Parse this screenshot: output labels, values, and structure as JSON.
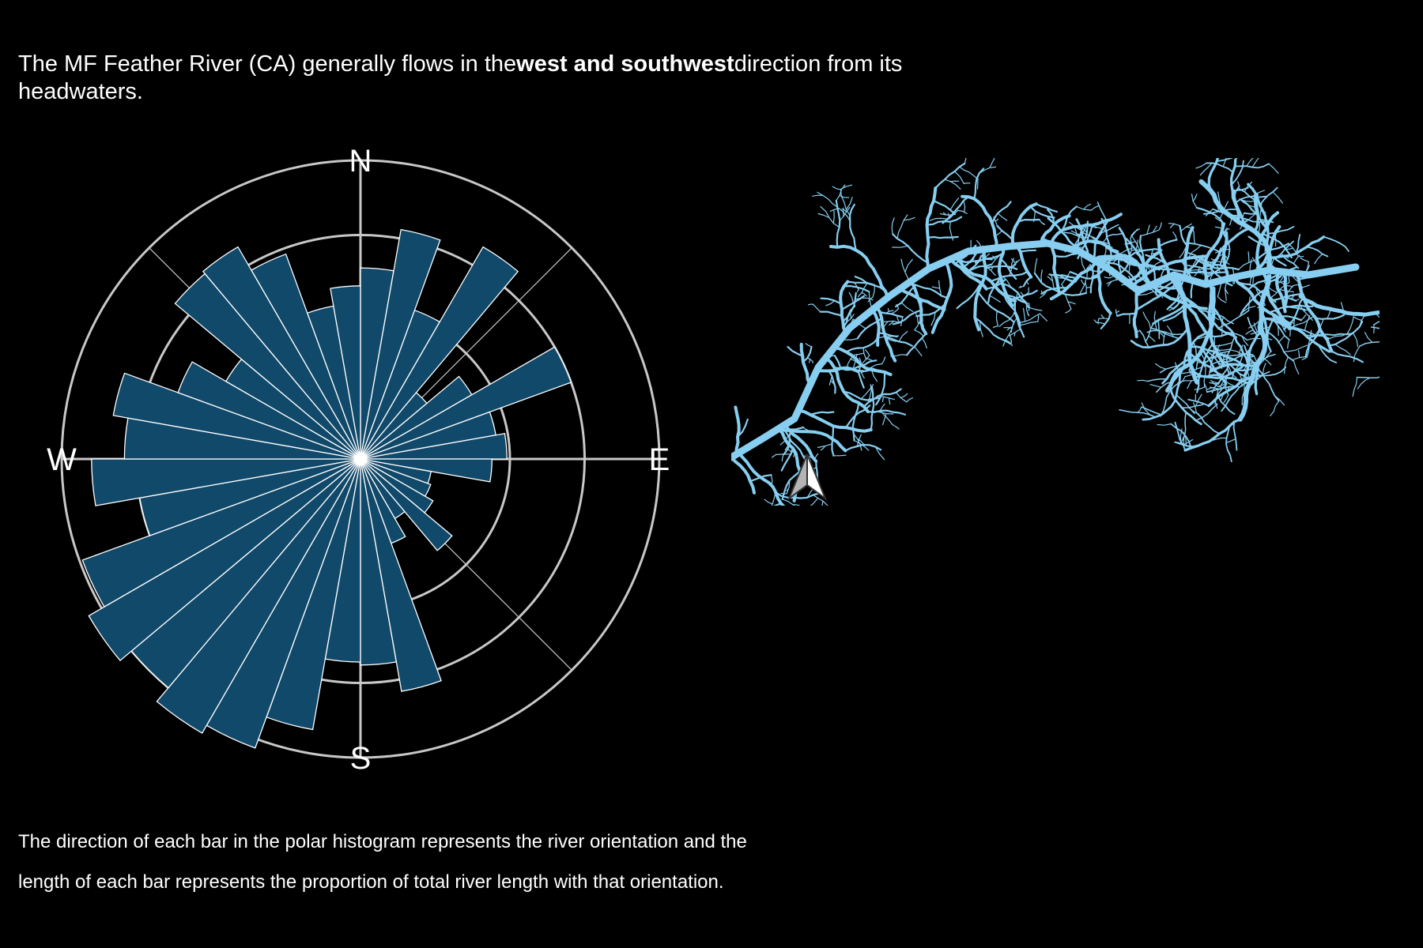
{
  "headline": {
    "lead": "The MF Feather River (CA) generally flows in the",
    "emphasis": "west and southwest",
    "tail": "direction from its headwaters."
  },
  "caption": {
    "line1": "The direction of each bar in the polar histogram represents the river orientation and the",
    "line2": "length of each bar represents the proportion of total river length with that orientation."
  },
  "colors": {
    "bar": "#11496a",
    "bar_stroke": "#ffffff",
    "grid": "#c8c8c8",
    "river": "#87cef0",
    "background": "#000000"
  },
  "icons": {
    "north_arrow": "north-arrow-icon"
  },
  "chart_data": {
    "type": "polar-histogram",
    "bin_width_deg": 10,
    "direction_labels": [
      "N",
      "E",
      "S",
      "W"
    ],
    "grid": true,
    "rings": [
      0.5,
      0.75,
      1.0
    ],
    "bins": [
      {
        "direction_deg": 0,
        "value": 0.64
      },
      {
        "direction_deg": 10,
        "value": 0.78
      },
      {
        "direction_deg": 20,
        "value": 0.53
      },
      {
        "direction_deg": 30,
        "value": 0.82
      },
      {
        "direction_deg": 40,
        "value": 0.29
      },
      {
        "direction_deg": 50,
        "value": 0.43
      },
      {
        "direction_deg": 60,
        "value": 0.75
      },
      {
        "direction_deg": 70,
        "value": 0.46
      },
      {
        "direction_deg": 80,
        "value": 0.49
      },
      {
        "direction_deg": 90,
        "value": 0.44
      },
      {
        "direction_deg": 100,
        "value": 0.24
      },
      {
        "direction_deg": 110,
        "value": 0.25
      },
      {
        "direction_deg": 120,
        "value": 0.28
      },
      {
        "direction_deg": 130,
        "value": 0.4
      },
      {
        "direction_deg": 140,
        "value": 0.23
      },
      {
        "direction_deg": 150,
        "value": 0.3
      },
      {
        "direction_deg": 160,
        "value": 0.79
      },
      {
        "direction_deg": 170,
        "value": 0.69
      },
      {
        "direction_deg": 180,
        "value": 0.68
      },
      {
        "direction_deg": 190,
        "value": 0.92
      },
      {
        "direction_deg": 200,
        "value": 1.03
      },
      {
        "direction_deg": 210,
        "value": 1.06
      },
      {
        "direction_deg": 220,
        "value": 1.0
      },
      {
        "direction_deg": 230,
        "value": 1.05
      },
      {
        "direction_deg": 240,
        "value": 0.99
      },
      {
        "direction_deg": 250,
        "value": 0.75
      },
      {
        "direction_deg": 260,
        "value": 0.9
      },
      {
        "direction_deg": 270,
        "value": 0.79
      },
      {
        "direction_deg": 280,
        "value": 0.84
      },
      {
        "direction_deg": 290,
        "value": 0.65
      },
      {
        "direction_deg": 300,
        "value": 0.52
      },
      {
        "direction_deg": 310,
        "value": 0.81
      },
      {
        "direction_deg": 320,
        "value": 0.82
      },
      {
        "direction_deg": 330,
        "value": 0.73
      },
      {
        "direction_deg": 340,
        "value": 0.52
      },
      {
        "direction_deg": 350,
        "value": 0.58
      }
    ]
  }
}
